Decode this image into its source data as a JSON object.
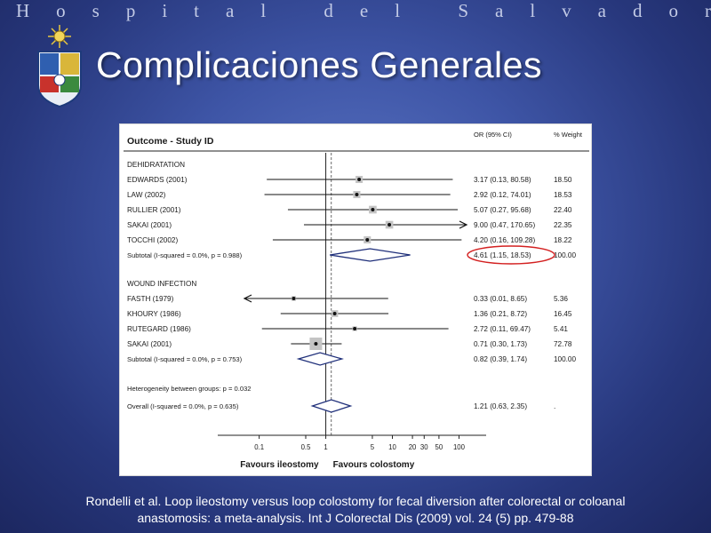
{
  "header": {
    "hospital": "Hospital del Salvador",
    "title": "Complicaciones Generales"
  },
  "citation": {
    "line1": "Rondelli et al. Loop ileostomy versus loop colostomy for fecal diversion after colorectal or coloanal",
    "line2": "anastomosis: a meta-analysis. Int J Colorectal Dis (2009) vol. 24 (5) pp. 479-88"
  },
  "colors": {
    "accent_highlight": "#d32020",
    "background": "#3e55a6"
  },
  "chart_data": {
    "type": "forest",
    "headers": {
      "study": "Outcome - Study ID",
      "or": "OR (95% CI)",
      "weight": "% Weight"
    },
    "xscale": "log",
    "xlim": [
      0.06,
      130
    ],
    "null_line": 1,
    "overall_dashed_line": 1.21,
    "xticks": [
      "0.1",
      "0.5",
      "1",
      "5",
      "10",
      "20",
      "30",
      "50",
      "100"
    ],
    "xtick_values": [
      0.1,
      0.5,
      1,
      5,
      10,
      20,
      30,
      50,
      100
    ],
    "xlabel_left": "Favours ileostomy",
    "xlabel_right": "Favours colostomy",
    "groups": [
      {
        "name": "DEHIDRATATION",
        "studies": [
          {
            "name": "EDWARDS (2001)",
            "or": 3.17,
            "lo": 0.13,
            "hi": 80.58,
            "ci_text": "3.17 (0.13, 80.58)",
            "weight": "18.50"
          },
          {
            "name": "LAW (2002)",
            "or": 2.92,
            "lo": 0.12,
            "hi": 74.01,
            "ci_text": "2.92 (0.12, 74.01)",
            "weight": "18.53"
          },
          {
            "name": "RULLIER (2001)",
            "or": 5.07,
            "lo": 0.27,
            "hi": 95.68,
            "ci_text": "5.07 (0.27, 95.68)",
            "weight": "22.40"
          },
          {
            "name": "SAKAI (2001)",
            "or": 9.0,
            "lo": 0.47,
            "hi": 170.65,
            "ci_text": "9.00 (0.47, 170.65)",
            "weight": "22.35"
          },
          {
            "name": "TOCCHI (2002)",
            "or": 4.2,
            "lo": 0.16,
            "hi": 109.28,
            "ci_text": "4.20 (0.16, 109.28)",
            "weight": "18.22"
          }
        ],
        "subtotal": {
          "label": "Subtotal  (I-squared = 0.0%, p = 0.988)",
          "or": 4.61,
          "lo": 1.15,
          "hi": 18.53,
          "ci_text": "4.61 (1.15, 18.53)",
          "weight": "100.00",
          "highlighted": true
        }
      },
      {
        "name": "WOUND INFECTION",
        "studies": [
          {
            "name": "FASTH (1979)",
            "or": 0.33,
            "lo": 0.01,
            "hi": 8.65,
            "ci_text": "0.33 (0.01, 8.65)",
            "weight": "5.36"
          },
          {
            "name": "KHOURY (1986)",
            "or": 1.36,
            "lo": 0.21,
            "hi": 8.72,
            "ci_text": "1.36 (0.21, 8.72)",
            "weight": "16.45"
          },
          {
            "name": "RUTEGARD (1986)",
            "or": 2.72,
            "lo": 0.11,
            "hi": 69.47,
            "ci_text": "2.72 (0.11, 69.47)",
            "weight": "5.41"
          },
          {
            "name": "SAKAI (2001)",
            "or": 0.71,
            "lo": 0.3,
            "hi": 1.73,
            "ci_text": "0.71 (0.30, 1.73)",
            "weight": "72.78"
          }
        ],
        "subtotal": {
          "label": "Subtotal  (I-squared = 0.0%, p = 0.753)",
          "or": 0.82,
          "lo": 0.39,
          "hi": 1.74,
          "ci_text": "0.82 (0.39, 1.74)",
          "weight": "100.00",
          "highlighted": false
        }
      }
    ],
    "heterogeneity": "Heterogeneity between groups: p = 0.032",
    "overall": {
      "label": "Overall  (I-squared = 0.0%, p = 0.635)",
      "or": 1.21,
      "lo": 0.63,
      "hi": 2.35,
      "ci_text": "1.21 (0.63, 2.35)",
      "weight": "."
    }
  }
}
